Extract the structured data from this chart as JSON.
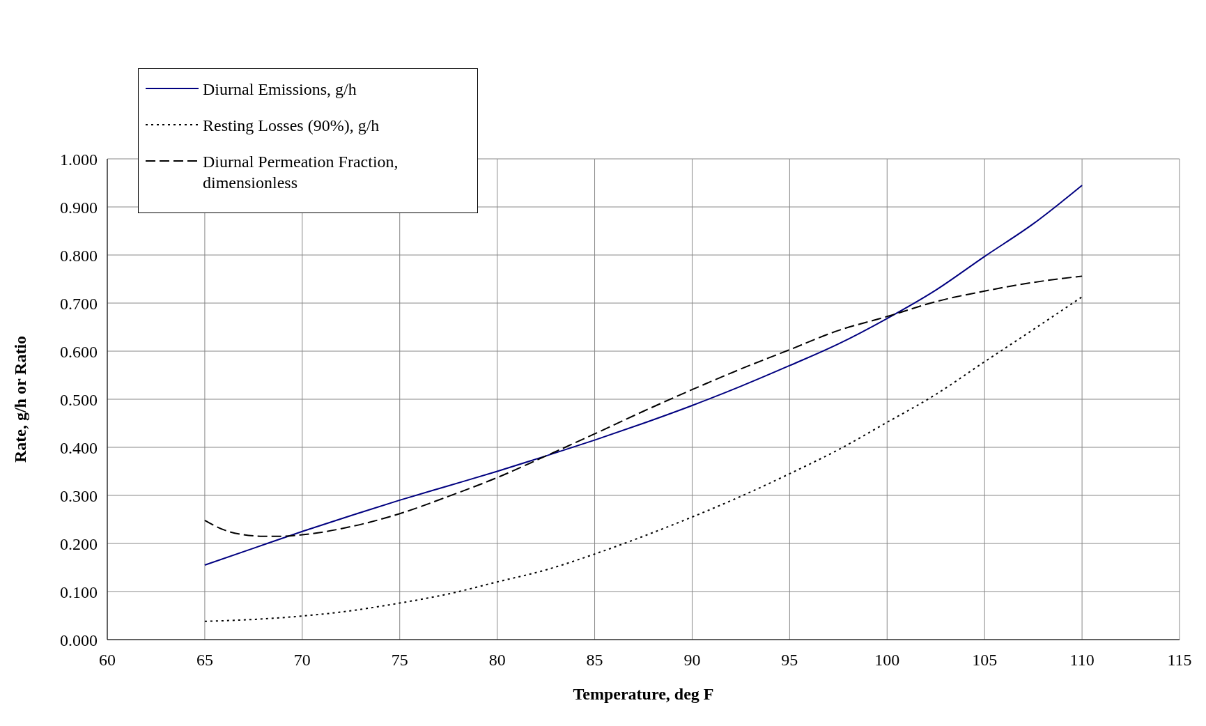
{
  "chart_data": {
    "type": "line",
    "xlabel": "Temperature, deg F",
    "ylabel": "Rate, g/h or Ratio",
    "xlim": [
      60,
      115
    ],
    "xticks": [
      60,
      65,
      70,
      75,
      80,
      85,
      90,
      95,
      100,
      105,
      110,
      115
    ],
    "ylim": [
      0,
      1
    ],
    "yticks": [
      {
        "value": 0,
        "label": "0.000"
      },
      {
        "value": 0.1,
        "label": "0.100"
      },
      {
        "value": 0.2,
        "label": "0.200"
      },
      {
        "value": 0.3,
        "label": "0.300"
      },
      {
        "value": 0.4,
        "label": "0.400"
      },
      {
        "value": 0.5,
        "label": "0.500"
      },
      {
        "value": 0.6,
        "label": "0.600"
      },
      {
        "value": 0.7,
        "label": "0.700"
      },
      {
        "value": 0.8,
        "label": "0.800"
      },
      {
        "value": 0.9,
        "label": "0.900"
      },
      {
        "value": 1,
        "label": "1.000"
      }
    ],
    "grid": true,
    "legend": "top left",
    "marker": "none",
    "series": [
      {
        "name": "Diurnal Emissions, g/h",
        "color": "#000080",
        "line_style": "solid",
        "x": [
          65,
          67.5,
          70,
          72.5,
          75,
          77.5,
          80,
          82.5,
          85,
          87.5,
          90,
          92.5,
          95,
          97.5,
          100,
          102.5,
          105,
          107.5,
          110
        ],
        "values": [
          0.155,
          0.19,
          0.225,
          0.258,
          0.29,
          0.32,
          0.35,
          0.382,
          0.415,
          0.45,
          0.487,
          0.527,
          0.57,
          0.615,
          0.668,
          0.727,
          0.797,
          0.865,
          0.945
        ]
      },
      {
        "name": "Resting Losses (90%), g/h",
        "color": "#000000",
        "line_style": "dotted",
        "x": [
          65,
          67.5,
          70,
          72.5,
          75,
          77.5,
          80,
          82.5,
          85,
          87.5,
          90,
          92.5,
          95,
          97.5,
          100,
          102.5,
          105,
          107.5,
          110
        ],
        "values": [
          0.038,
          0.042,
          0.049,
          0.06,
          0.076,
          0.095,
          0.12,
          0.145,
          0.178,
          0.215,
          0.255,
          0.298,
          0.345,
          0.395,
          0.452,
          0.51,
          0.578,
          0.645,
          0.713
        ]
      },
      {
        "name": "Diurnal Permeation Fraction, dimensionless",
        "color": "#000000",
        "line_style": "dashed",
        "x": [
          65,
          66,
          67,
          68,
          69,
          70,
          72.5,
          75,
          77.5,
          80,
          82.5,
          85,
          87.5,
          90,
          92.5,
          95,
          97.5,
          100,
          102.5,
          105,
          107.5,
          110
        ],
        "values": [
          0.248,
          0.228,
          0.218,
          0.215,
          0.215,
          0.218,
          0.235,
          0.262,
          0.298,
          0.337,
          0.382,
          0.428,
          0.475,
          0.52,
          0.563,
          0.603,
          0.643,
          0.672,
          0.703,
          0.725,
          0.743,
          0.756
        ]
      }
    ]
  }
}
